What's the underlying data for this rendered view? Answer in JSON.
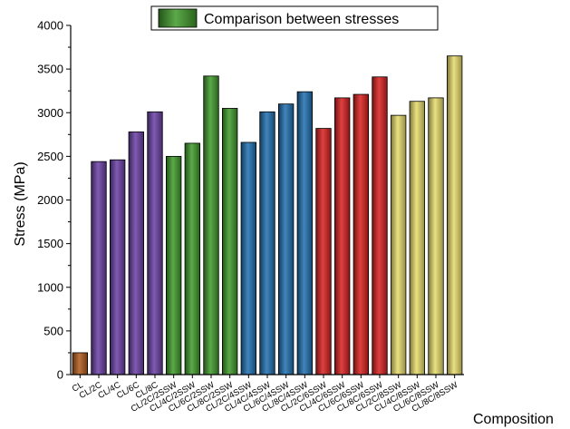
{
  "chart_data": {
    "type": "bar",
    "title": "",
    "xlabel": "Composition",
    "ylabel": "Stress (MPa)",
    "ylim": [
      0,
      4000
    ],
    "yticks": [
      0,
      500,
      1000,
      1500,
      2000,
      2500,
      3000,
      3500,
      4000
    ],
    "legend": {
      "label": "Comparison between stresses",
      "placement": "top-center",
      "swatch_color": "#3f9a2a"
    },
    "categories": [
      "CL",
      "CL/2C",
      "CL/4C",
      "CL/6C",
      "CL/8C",
      "CL/2C/2SSW",
      "CL/4C/2SSW",
      "CL/6C/2SSW",
      "CL/8C/2SSW",
      "CL/2C/4SSW",
      "CL/4C/4SSW",
      "CL/6C/4SSW",
      "CL/8C/4SSW",
      "CL/2C/6SSW",
      "CL/4C/6SSW",
      "CL/6C/6SSW",
      "CL/8C/6SSW",
      "CL/2C/8SSW",
      "CL/4C/8SSW",
      "CL/6C/8SSW",
      "CL/8C/8SSW"
    ],
    "values": [
      250,
      2440,
      2460,
      2780,
      3010,
      2500,
      2650,
      3420,
      3050,
      2660,
      3010,
      3100,
      3240,
      2820,
      3170,
      3210,
      3410,
      2970,
      3130,
      3170,
      3650
    ],
    "colors": [
      "#b05a1c",
      "#6a3fa4",
      "#6a3fa4",
      "#6a3fa4",
      "#6a3fa4",
      "#3f9a2a",
      "#3f9a2a",
      "#3f9a2a",
      "#3f9a2a",
      "#1f6fb0",
      "#1f6fb0",
      "#1f6fb0",
      "#1f6fb0",
      "#d8201e",
      "#d8201e",
      "#d8201e",
      "#d8201e",
      "#e6dc6c",
      "#e6dc6c",
      "#e6dc6c",
      "#e6dc6c"
    ]
  }
}
